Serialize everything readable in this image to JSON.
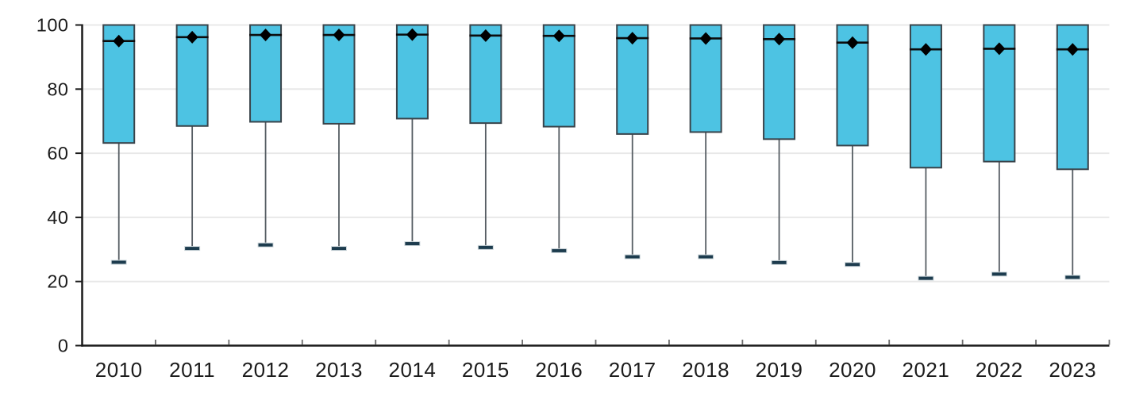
{
  "chart_data": {
    "type": "box",
    "title": "",
    "xlabel": "",
    "ylabel": "",
    "categories": [
      "2010",
      "2011",
      "2012",
      "2013",
      "2014",
      "2015",
      "2016",
      "2017",
      "2018",
      "2019",
      "2020",
      "2021",
      "2022",
      "2023"
    ],
    "series": [
      {
        "year": "2010",
        "min": 26.0,
        "q1": 63.2,
        "median": 95.0,
        "q3": 100,
        "max": 100,
        "mean": 95.0
      },
      {
        "year": "2011",
        "min": 30.3,
        "q1": 68.5,
        "median": 96.2,
        "q3": 100,
        "max": 100,
        "mean": 96.2
      },
      {
        "year": "2012",
        "min": 31.4,
        "q1": 69.8,
        "median": 96.9,
        "q3": 100,
        "max": 100,
        "mean": 96.9
      },
      {
        "year": "2013",
        "min": 30.3,
        "q1": 69.2,
        "median": 96.9,
        "q3": 100,
        "max": 100,
        "mean": 96.9
      },
      {
        "year": "2014",
        "min": 31.8,
        "q1": 70.8,
        "median": 97.0,
        "q3": 100,
        "max": 100,
        "mean": 97.0
      },
      {
        "year": "2015",
        "min": 30.6,
        "q1": 69.4,
        "median": 96.7,
        "q3": 100,
        "max": 100,
        "mean": 96.7
      },
      {
        "year": "2016",
        "min": 29.6,
        "q1": 68.3,
        "median": 96.6,
        "q3": 100,
        "max": 100,
        "mean": 96.6
      },
      {
        "year": "2017",
        "min": 27.7,
        "q1": 66.0,
        "median": 95.9,
        "q3": 100,
        "max": 100,
        "mean": 95.9
      },
      {
        "year": "2018",
        "min": 27.7,
        "q1": 66.6,
        "median": 95.8,
        "q3": 100,
        "max": 100,
        "mean": 95.8
      },
      {
        "year": "2019",
        "min": 25.9,
        "q1": 64.4,
        "median": 95.6,
        "q3": 100,
        "max": 100,
        "mean": 95.6
      },
      {
        "year": "2020",
        "min": 25.3,
        "q1": 62.4,
        "median": 94.5,
        "q3": 100,
        "max": 100,
        "mean": 94.5
      },
      {
        "year": "2021",
        "min": 21.0,
        "q1": 55.5,
        "median": 92.4,
        "q3": 100,
        "max": 100,
        "mean": 92.4
      },
      {
        "year": "2022",
        "min": 22.3,
        "q1": 57.4,
        "median": 92.6,
        "q3": 100,
        "max": 100,
        "mean": 92.6
      },
      {
        "year": "2023",
        "min": 21.3,
        "q1": 55.0,
        "median": 92.4,
        "q3": 100,
        "max": 100,
        "mean": 92.4
      }
    ],
    "ylim": [
      0,
      100
    ],
    "yticks": [
      0,
      20,
      40,
      60,
      80,
      100
    ],
    "grid": "horizontal-light",
    "legend_position": "none",
    "mean_marker_shape": "diamond",
    "colors": {
      "box_fill": "#4dc3e3",
      "box_border": "#39434a",
      "median_line": "#0d0d0d",
      "mean_marker": "#000000",
      "whisker_line": "#565d63",
      "whisker_cap_fill": "#1d3c4e",
      "whisker_cap_halo": "#cfd8dc",
      "grid_line": "#e8e8e8",
      "axis_line": "#1a1a1a",
      "x_tick": "#6b6b6b",
      "label_color": "#1c1c1c",
      "background": "#ffffff"
    }
  }
}
